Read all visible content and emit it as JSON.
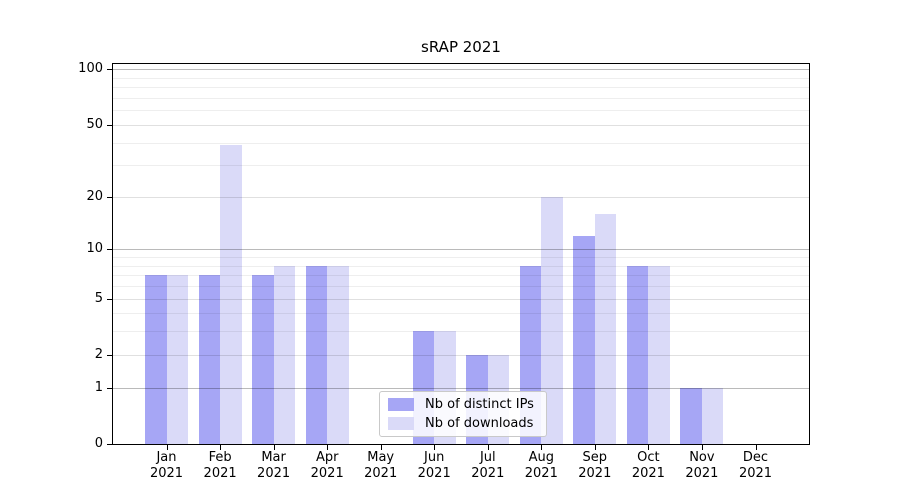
{
  "title": "sRAP 2021",
  "chart_data": {
    "type": "bar",
    "title": "sRAP 2021",
    "categories": [
      "Jan",
      "Feb",
      "Mar",
      "Apr",
      "May",
      "Jun",
      "Jul",
      "Aug",
      "Sep",
      "Oct",
      "Nov",
      "Dec"
    ],
    "category_year": "2021",
    "series": [
      {
        "name": "Nb of distinct IPs",
        "color": "#a6a6f5",
        "values": [
          7,
          7,
          7,
          8,
          0,
          3,
          2,
          8,
          12,
          8,
          1,
          0
        ]
      },
      {
        "name": "Nb of downloads",
        "color": "#dadaf8",
        "values": [
          7,
          39,
          8,
          8,
          0,
          3,
          2,
          20,
          16,
          8,
          1,
          0
        ]
      }
    ],
    "y_ticks": [
      0,
      1,
      2,
      5,
      10,
      20,
      50,
      100
    ],
    "y_scale": "log10(1+v)",
    "ylim": [
      0,
      109.5
    ],
    "xlabel": "",
    "ylabel": "",
    "grid": true,
    "legend_position": "lower center-left",
    "grid_major_values": [
      1,
      10,
      100
    ],
    "grid_mid_values": [
      2,
      5,
      20,
      50
    ],
    "grid_minor_values": [
      3,
      4,
      6,
      7,
      8,
      9,
      30,
      40,
      60,
      70,
      80,
      90
    ],
    "grid_major_color": "rgba(0,0,0,0.27)",
    "grid_mid_color": "rgba(0,0,0,0.12)",
    "grid_minor_color": "rgba(0,0,0,0.065)"
  }
}
